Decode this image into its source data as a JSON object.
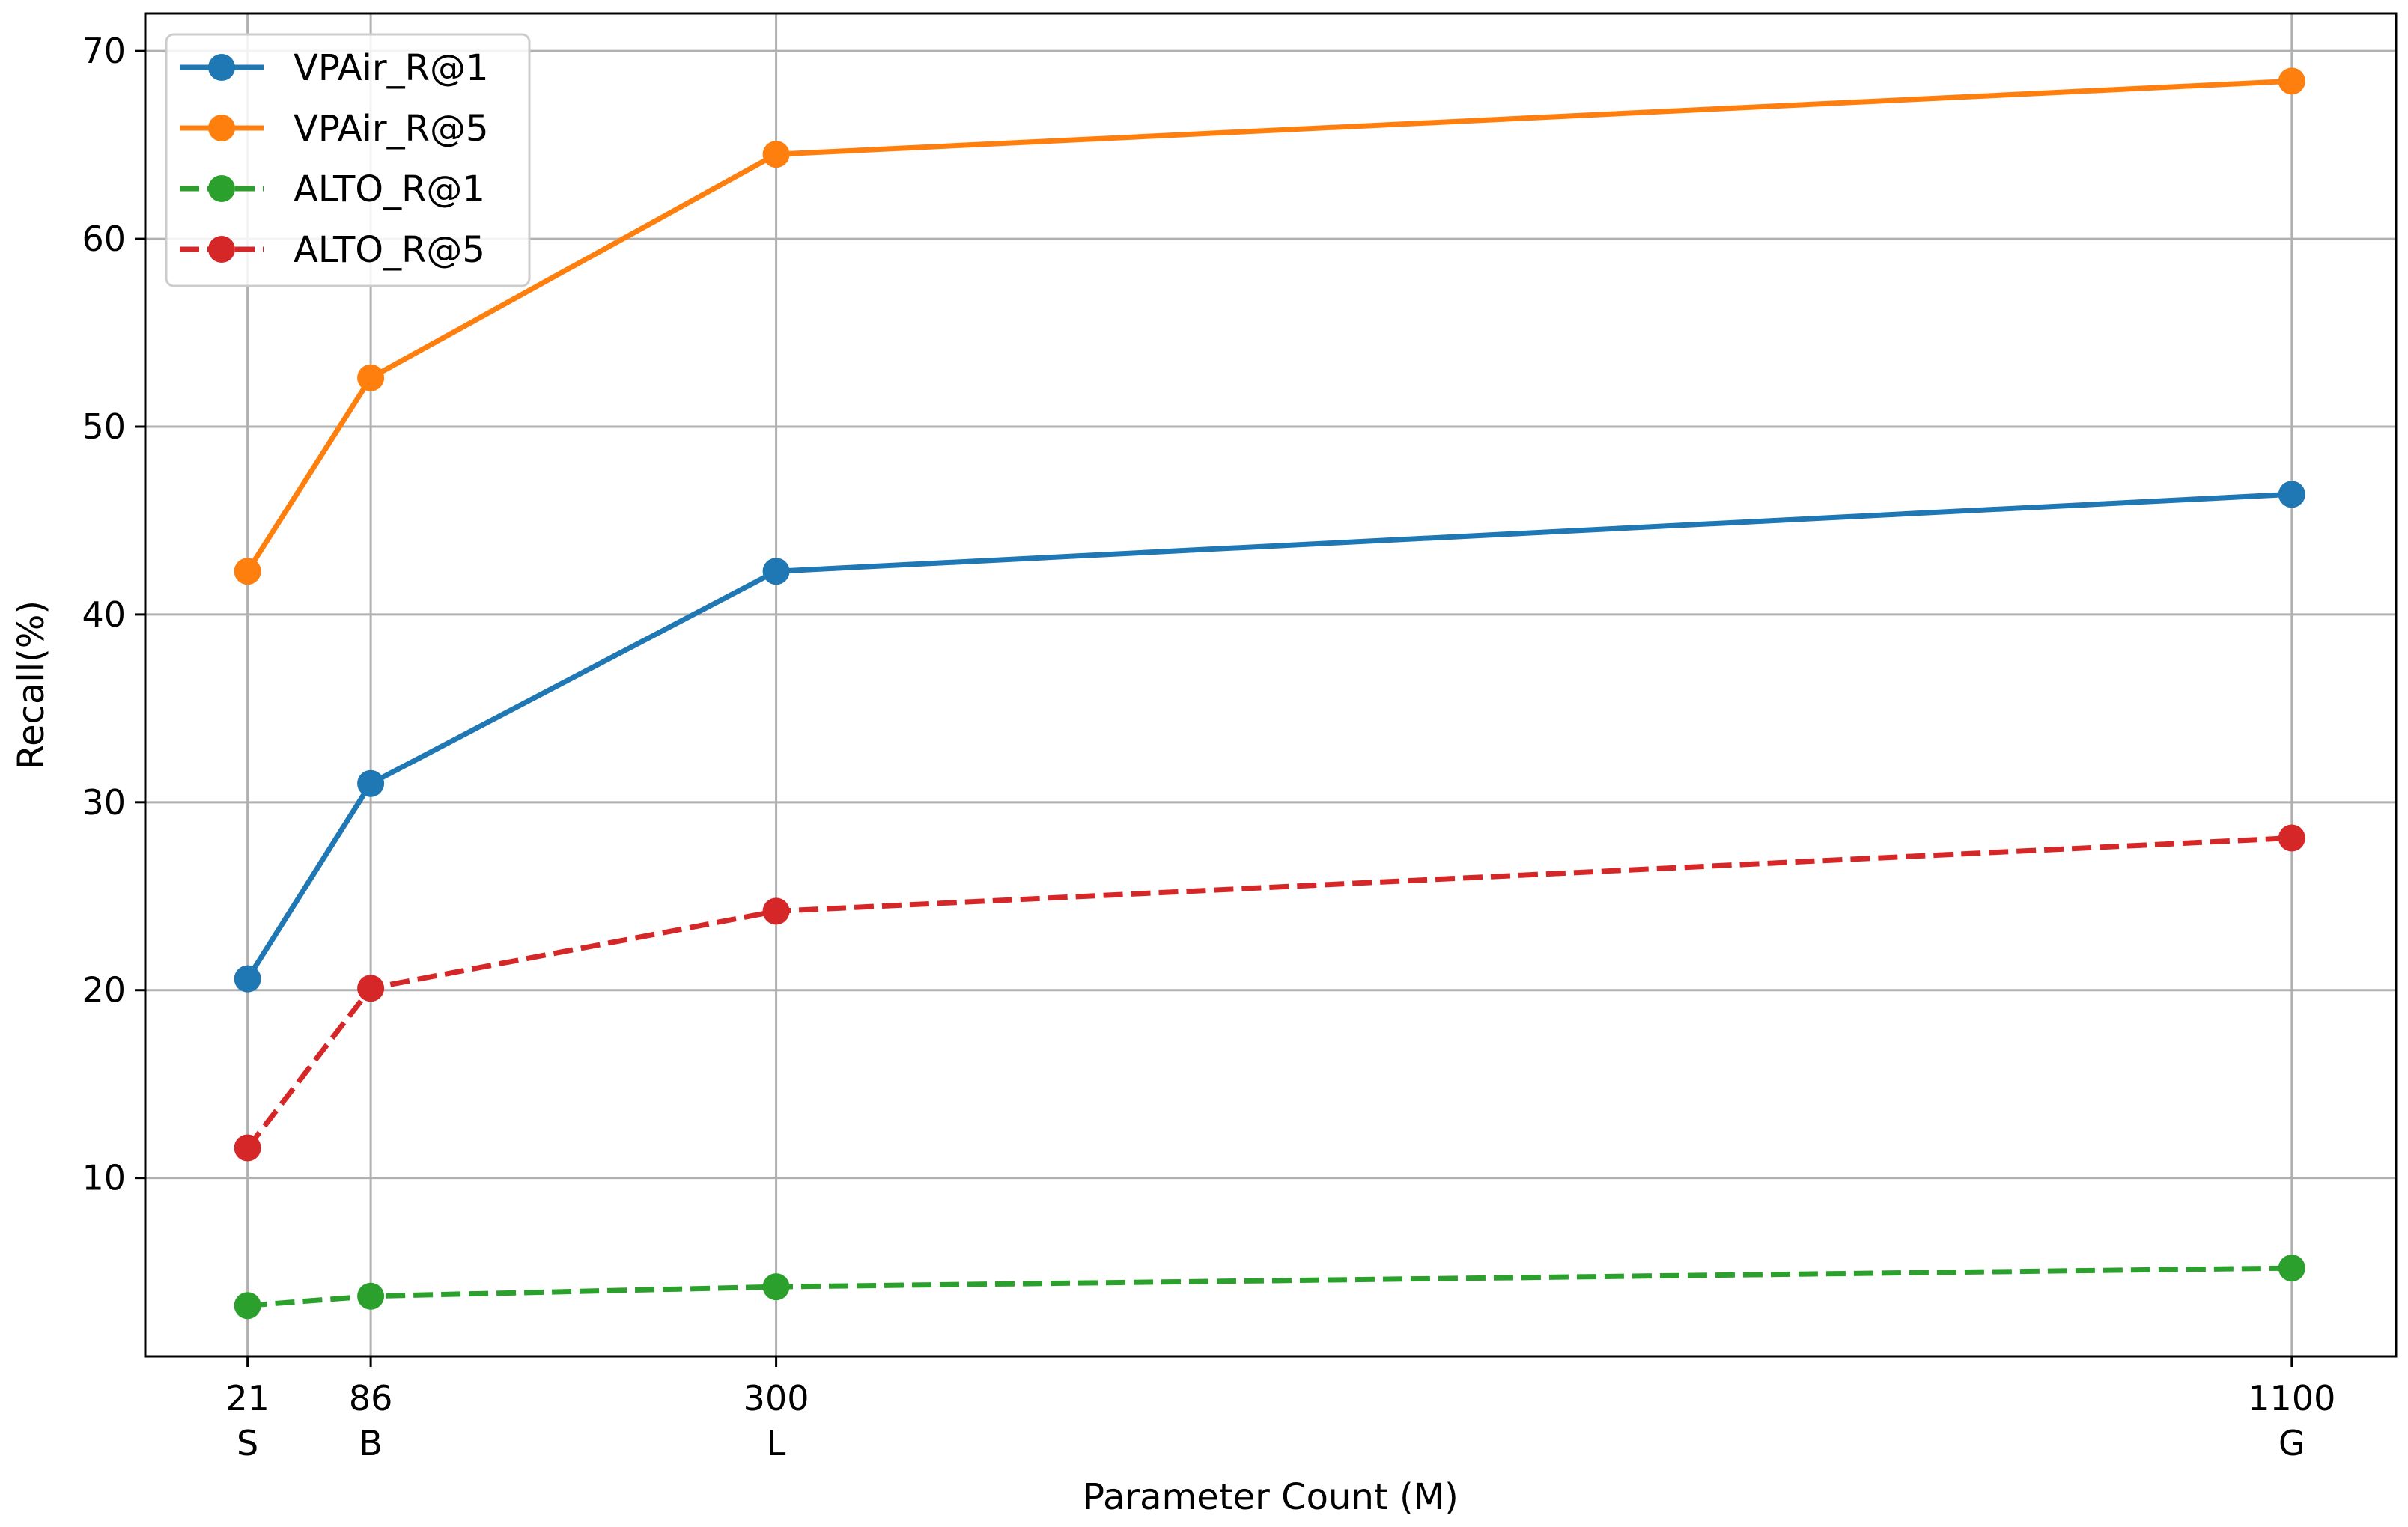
{
  "chart_data": {
    "type": "line",
    "title": "",
    "xlabel": "Parameter Count (M)",
    "ylabel": "Recall(%)",
    "x": [
      21,
      86,
      300,
      1100
    ],
    "x_tick_labels": [
      {
        "value": "21",
        "model": "S"
      },
      {
        "value": "86",
        "model": "B"
      },
      {
        "value": "300",
        "model": "L"
      },
      {
        "value": "1100",
        "model": "G"
      }
    ],
    "xlim": [
      -33,
      1155
    ],
    "ylim": [
      0.5,
      72
    ],
    "y_ticks": [
      10,
      20,
      30,
      40,
      50,
      60,
      70
    ],
    "grid": true,
    "legend_position": "top-left",
    "series": [
      {
        "name": "VPAir_R@1",
        "color": "#1f77b4",
        "linestyle": "solid",
        "marker": "circle",
        "values": [
          20.6,
          31.0,
          42.3,
          46.4
        ]
      },
      {
        "name": "VPAir_R@5",
        "color": "#ff7f0e",
        "linestyle": "solid",
        "marker": "circle",
        "values": [
          42.3,
          52.6,
          64.5,
          68.4
        ]
      },
      {
        "name": "ALTO_R@1",
        "color": "#2ca02c",
        "linestyle": "dashed",
        "marker": "circle",
        "values": [
          3.2,
          3.7,
          4.2,
          5.2
        ]
      },
      {
        "name": "ALTO_R@5",
        "color": "#d62728",
        "linestyle": "dashed",
        "marker": "circle",
        "values": [
          11.6,
          20.1,
          24.2,
          28.1
        ]
      }
    ]
  }
}
